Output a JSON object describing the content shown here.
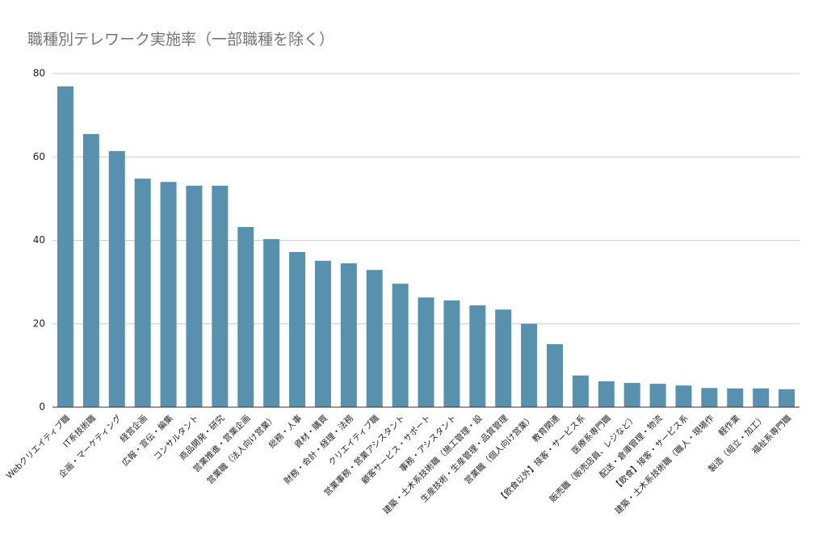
{
  "chart_data": {
    "type": "bar",
    "title": "職種別テレワーク実施率（一部職種を除く）",
    "categories": [
      "Webクリエイティブ職",
      "IT系技術職",
      "企画・マーケティング",
      "経営企画",
      "広報・宣伝・編集",
      "コンサルタント",
      "商品開発・研究",
      "営業推進・営業企画",
      "営業職（法人向け営業）",
      "総務・人事",
      "資材・購買",
      "財務・会計・経理・法務",
      "クリエイティブ職",
      "営業事務・営業アシスタント",
      "顧客サービス・サポート",
      "事務・アシスタント",
      "建築・土木系技術職（施工管理・設",
      "生産技術・生産管理・品質管理",
      "営業職（個人向け営業）",
      "教育関連",
      "【飲食以外】接客・サービス系",
      "医療系専門職",
      "販売職（販売店員、レジなど）",
      "配送・倉庫管理・物流",
      "【飲食】接客・サービス系",
      "建築・土木系技術職（職人・現場作",
      "軽作業",
      "製造（組立・加工）",
      "福祉系専門職"
    ],
    "values": [
      76.9,
      65.5,
      61.4,
      54.8,
      54.0,
      53.1,
      53.1,
      43.2,
      40.3,
      37.2,
      35.1,
      34.5,
      32.9,
      29.6,
      26.3,
      25.6,
      24.4,
      23.4,
      20.0,
      15.1,
      7.6,
      6.2,
      5.8,
      5.6,
      5.2,
      4.6,
      4.5,
      4.5,
      4.3
    ],
    "color": "#5891ad",
    "ylim": [
      0,
      80
    ],
    "yticks": [
      0,
      20,
      40,
      60,
      80
    ],
    "grid": true
  }
}
